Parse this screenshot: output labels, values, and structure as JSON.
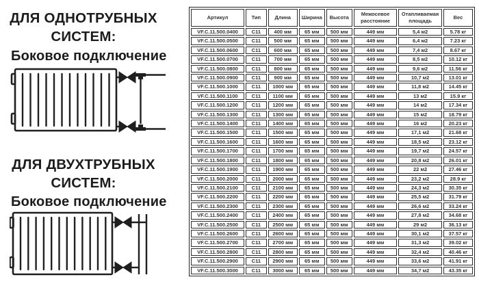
{
  "sections": {
    "one_pipe": {
      "title_line1": "ДЛЯ ОДНОТРУБНЫХ",
      "title_line2": "СИСТЕМ:",
      "subtitle": "Боковое подключение"
    },
    "two_pipe": {
      "title_line1": "ДЛЯ ДВУХТРУБНЫХ",
      "title_line2": "СИСТЕМ:",
      "subtitle": "Боковое подключение"
    }
  },
  "table": {
    "headers": [
      "Артикул",
      "Тип",
      "Длина",
      "Ширина",
      "Высота",
      "Межосевое расстояние",
      "Отапливаемая площадь",
      "Вес"
    ],
    "rows": [
      [
        "VF.C.11.500.0400",
        "C11",
        "400 мм",
        "65 мм",
        "500 мм",
        "449 мм",
        "5,4 м2",
        "5.78 кг"
      ],
      [
        "VF.C.11.500.0500",
        "C11",
        "500 мм",
        "65 мм",
        "500 мм",
        "449 мм",
        "6,4 м2",
        "7.23 кг"
      ],
      [
        "VF.C.11.500.0600",
        "C11",
        "600 мм",
        "65 мм",
        "500 мм",
        "449 мм",
        "7,4 м2",
        "8.67 кг"
      ],
      [
        "VF.C.11.500.0700",
        "C11",
        "700 мм",
        "65 мм",
        "500 мм",
        "449 мм",
        "8,5 м2",
        "10.12 кг"
      ],
      [
        "VF.C.11.500.0800",
        "C11",
        "800 мм",
        "65 мм",
        "500 мм",
        "449 мм",
        "9,6 м2",
        "11.56 кг"
      ],
      [
        "VF.C.11.500.0900",
        "C11",
        "900 мм",
        "65 мм",
        "500 мм",
        "449 мм",
        "10,7 м2",
        "13.01 кг"
      ],
      [
        "VF.C.11.500.1000",
        "C11",
        "1000 мм",
        "65 мм",
        "500 мм",
        "449 мм",
        "11,8 м2",
        "14.45 кг"
      ],
      [
        "VF.C.11.500.1100",
        "C11",
        "1100 мм",
        "65 мм",
        "500 мм",
        "449 мм",
        "13 м2",
        "15.9 кг"
      ],
      [
        "VF.C.11.500.1200",
        "C11",
        "1200 мм",
        "65 мм",
        "500 мм",
        "449 мм",
        "14 м2",
        "17.34 кг"
      ],
      [
        "VF.C.11.500.1300",
        "C11",
        "1300 мм",
        "65 мм",
        "500 мм",
        "449 мм",
        "15 м2",
        "18.79 кг"
      ],
      [
        "VF.C.11.500.1400",
        "C11",
        "1400 мм",
        "65 мм",
        "500 мм",
        "449 мм",
        "16 м2",
        "20.23 кг"
      ],
      [
        "VF.C.11.500.1500",
        "C11",
        "1500 мм",
        "65 мм",
        "500 мм",
        "449 мм",
        "17,1 м2",
        "21.68 кг"
      ],
      [
        "VF.C.11.500.1600",
        "C11",
        "1600 мм",
        "65 мм",
        "500 мм",
        "449 мм",
        "18,5 м2",
        "23.12 кг"
      ],
      [
        "VF.C.11.500.1700",
        "C11",
        "1700 мм",
        "65 мм",
        "500 мм",
        "449 мм",
        "19,7 м2",
        "24.57 кг"
      ],
      [
        "VF.C.11.500.1800",
        "C11",
        "1800 мм",
        "65 мм",
        "500 мм",
        "449 мм",
        "20,8 м2",
        "26.01 кг"
      ],
      [
        "VF.C.11.500.1900",
        "C11",
        "1900 мм",
        "65 мм",
        "500 мм",
        "449 мм",
        "22 м2",
        "27.46 кг"
      ],
      [
        "VF.C.11.500.2000",
        "C11",
        "2000 мм",
        "65 мм",
        "500 мм",
        "449 мм",
        "23,2 м2",
        "28.9 кг"
      ],
      [
        "VF.C.11.500.2100",
        "C11",
        "2100 мм",
        "65 мм",
        "500 мм",
        "449 мм",
        "24,3 м2",
        "30.35 кг"
      ],
      [
        "VF.C.11.500.2200",
        "C11",
        "2200 мм",
        "65 мм",
        "500 мм",
        "449 мм",
        "25,5 м2",
        "31.79 кг"
      ],
      [
        "VF.C.11.500.2300",
        "C11",
        "2300 мм",
        "65 мм",
        "500 мм",
        "449 мм",
        "26,6 м2",
        "33.24 кг"
      ],
      [
        "VF.C.11.500.2400",
        "C11",
        "2400 мм",
        "65 мм",
        "500 мм",
        "449 мм",
        "27,8 м2",
        "34.68 кг"
      ],
      [
        "VF.C.11.500.2500",
        "C11",
        "2500 мм",
        "65 мм",
        "500 мм",
        "449 мм",
        "29 м2",
        "36.13 кг"
      ],
      [
        "VF.C.11.500.2600",
        "C11",
        "2600 мм",
        "65 мм",
        "500 мм",
        "449 мм",
        "30,1 м2",
        "37.57 кг"
      ],
      [
        "VF.C.11.500.2700",
        "C11",
        "2700 мм",
        "65 мм",
        "500 мм",
        "449 мм",
        "31,3 м2",
        "39.02 кг"
      ],
      [
        "VF.C.11.500.2800",
        "C11",
        "2800 мм",
        "65 мм",
        "500 мм",
        "449 мм",
        "32,4 м2",
        "40.46 кг"
      ],
      [
        "VF.C.11.500.2900",
        "C11",
        "2900 мм",
        "65 мм",
        "500 мм",
        "449 мм",
        "33,6 м2",
        "41.91 кг"
      ],
      [
        "VF.C.11.500.3000",
        "C11",
        "3000 мм",
        "65 мм",
        "500 мм",
        "449 мм",
        "34,7 м2",
        "43.35 кг"
      ]
    ]
  },
  "colors": {
    "ink": "#1c1c1c",
    "table_border": "#2c2c2c",
    "background": "#ffffff"
  }
}
